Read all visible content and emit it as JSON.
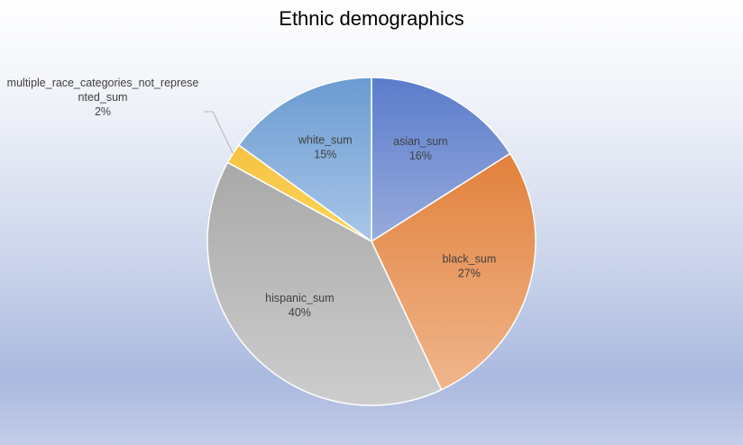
{
  "chart_data": {
    "type": "pie",
    "title": "Ethnic demographics",
    "slices": [
      {
        "label": "asian_sum",
        "value": 16,
        "value_label": "16%",
        "color": "#5b7ccc",
        "color_light": "#97abdc"
      },
      {
        "label": "black_sum",
        "value": 27,
        "value_label": "27%",
        "color": "#e2813c",
        "color_light": "#efb68c"
      },
      {
        "label": "hispanic_sum",
        "value": 40,
        "value_label": "40%",
        "color": "#a9a9a9",
        "color_light": "#cdcdcd"
      },
      {
        "label": "multiple_race_categories_not_represented_sum",
        "label_lines": [
          "multiple_race_categories_not_represe",
          "nted_sum"
        ],
        "value": 2,
        "value_label": "2%",
        "color": "#f5c242",
        "color_light": "#fcd65b"
      },
      {
        "label": "white_sum",
        "value": 15,
        "value_label": "15%",
        "color": "#6b9bd2",
        "color_light": "#a9c6e8"
      }
    ],
    "legend": "none"
  }
}
